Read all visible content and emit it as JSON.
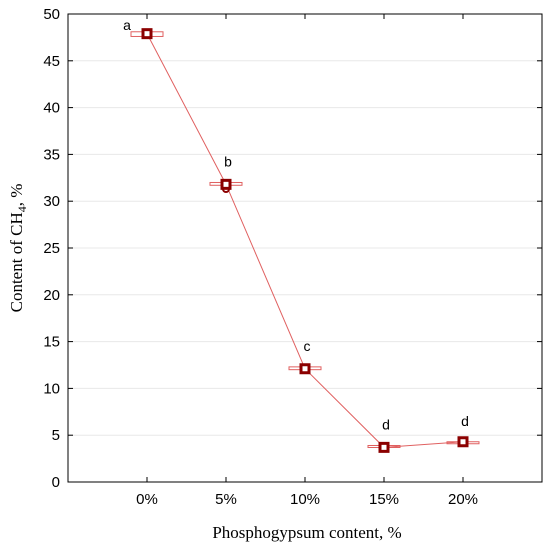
{
  "chart_data": {
    "type": "line",
    "categories": [
      "0%",
      "5%",
      "10%",
      "15%",
      "20%"
    ],
    "series": [
      {
        "values": [
          47.9,
          31.8,
          12.1,
          3.7,
          4.3
        ],
        "box_low": [
          47.6,
          31.7,
          12.0,
          3.7,
          4.2
        ],
        "box_high": [
          48.1,
          32.0,
          12.3,
          3.9,
          4.3
        ],
        "outliers": [
          null,
          31.3,
          null,
          null,
          null
        ],
        "significance_labels": [
          "a",
          "b",
          "c",
          "d",
          "d"
        ]
      }
    ],
    "xlabel": "Phosphogypsum content, %",
    "ylabel_prefix": "Content of CH",
    "ylabel_subscript": "4",
    "ylabel_suffix": ", %",
    "ylim": [
      0,
      50
    ],
    "yticks": [
      "0",
      "5",
      "10",
      "15",
      "20",
      "25",
      "30",
      "35",
      "40",
      "45",
      "50"
    ],
    "grid": "horizontal",
    "colors": {
      "marker": "#8b0000",
      "line": "#e06060",
      "box": "#e06060",
      "grid": "#e8e8e8"
    }
  }
}
